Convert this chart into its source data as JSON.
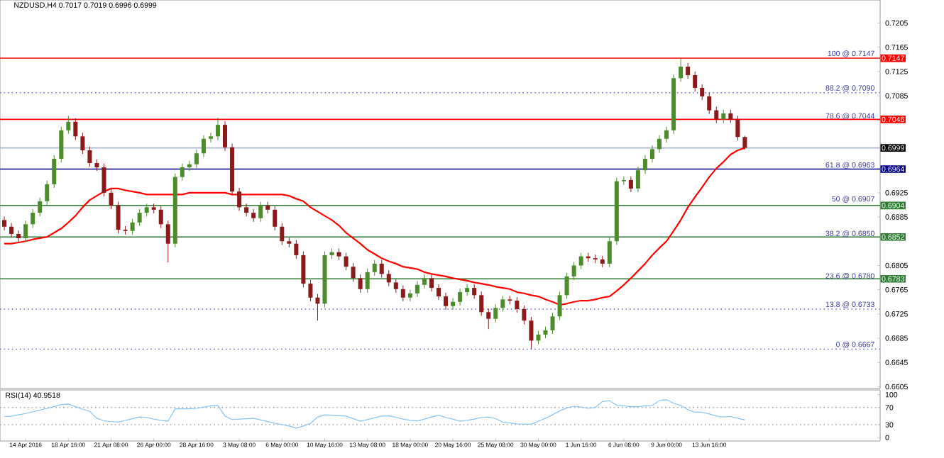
{
  "chart_data": [
    {
      "type": "candlestick",
      "title": "NZDUSD,H4  0.7017 0.7019 0.6996 0.6999",
      "tick_labels": "y",
      "categories": [
        null,
        null,
        null,
        null,
        null,
        null,
        null,
        null,
        null,
        null,
        null,
        null,
        null,
        null,
        null,
        null,
        null,
        null,
        null,
        null,
        null,
        null,
        null,
        null,
        null,
        null,
        null,
        null,
        null,
        null,
        null,
        null,
        null,
        null,
        null,
        null,
        null,
        null,
        null,
        null,
        null,
        null,
        null,
        null,
        null,
        null,
        null,
        null,
        null,
        null,
        null,
        null,
        null,
        null,
        null,
        null,
        null,
        null,
        null,
        null,
        null,
        null,
        null,
        null,
        null,
        null,
        null,
        null,
        null,
        null,
        null,
        null,
        null,
        null,
        null,
        null,
        null,
        null,
        null,
        null,
        null,
        null,
        null,
        null,
        null,
        null,
        null,
        null,
        null,
        null,
        null,
        null,
        null,
        null,
        null,
        null,
        null,
        null,
        null,
        null,
        null,
        null,
        null,
        null,
        null
      ],
      "ohlc": [
        [
          0.688,
          0.6886,
          0.6863,
          0.6869
        ],
        [
          0.6869,
          0.6875,
          0.6851,
          0.6857
        ],
        [
          0.6857,
          0.6863,
          0.6844,
          0.685
        ],
        [
          0.685,
          0.6879,
          0.6844,
          0.6873
        ],
        [
          0.6873,
          0.6898,
          0.6867,
          0.6892
        ],
        [
          0.6892,
          0.6917,
          0.6886,
          0.6911
        ],
        [
          0.6911,
          0.6945,
          0.6905,
          0.6939
        ],
        [
          0.6939,
          0.6987,
          0.6933,
          0.6981
        ],
        [
          0.6981,
          0.7034,
          0.6975,
          0.7028
        ],
        [
          0.7028,
          0.7052,
          0.7022,
          0.7042
        ],
        [
          0.7042,
          0.7048,
          0.7012,
          0.7018
        ],
        [
          0.7018,
          0.7024,
          0.6989,
          0.6995
        ],
        [
          0.6995,
          0.7001,
          0.6968,
          0.6974
        ],
        [
          0.6974,
          0.698,
          0.6961,
          0.6967
        ],
        [
          0.6967,
          0.6973,
          0.6919,
          0.6925
        ],
        [
          0.6925,
          0.6931,
          0.6898,
          0.6904
        ],
        [
          0.6904,
          0.691,
          0.6858,
          0.6864
        ],
        [
          0.6864,
          0.687,
          0.6856,
          0.6862
        ],
        [
          0.6862,
          0.6882,
          0.6856,
          0.6876
        ],
        [
          0.6876,
          0.6898,
          0.687,
          0.6892
        ],
        [
          0.6892,
          0.6907,
          0.6886,
          0.6901
        ],
        [
          0.6901,
          0.6907,
          0.6891,
          0.6897
        ],
        [
          0.6897,
          0.6903,
          0.6867,
          0.6873
        ],
        [
          0.6873,
          0.6879,
          0.681,
          0.6841
        ],
        [
          0.6841,
          0.6957,
          0.6835,
          0.6951
        ],
        [
          0.6951,
          0.6973,
          0.6945,
          0.6967
        ],
        [
          0.6967,
          0.6978,
          0.6961,
          0.6972
        ],
        [
          0.6972,
          0.6996,
          0.6966,
          0.699
        ],
        [
          0.699,
          0.702,
          0.6984,
          0.7014
        ],
        [
          0.7014,
          0.7024,
          0.7008,
          0.7018
        ],
        [
          0.7018,
          0.7049,
          0.7012,
          0.7037
        ],
        [
          0.7037,
          0.7043,
          0.6994,
          0.7
        ],
        [
          0.7,
          0.7006,
          0.6921,
          0.6927
        ],
        [
          0.6927,
          0.6933,
          0.6895,
          0.6901
        ],
        [
          0.6901,
          0.6907,
          0.6886,
          0.6892
        ],
        [
          0.6892,
          0.6898,
          0.6877,
          0.6883
        ],
        [
          0.6883,
          0.691,
          0.6877,
          0.6904
        ],
        [
          0.6904,
          0.691,
          0.6891,
          0.6897
        ],
        [
          0.6897,
          0.6903,
          0.6863,
          0.6869
        ],
        [
          0.6869,
          0.6875,
          0.6839,
          0.6845
        ],
        [
          0.6845,
          0.6851,
          0.6835,
          0.6841
        ],
        [
          0.6841,
          0.6847,
          0.6816,
          0.6822
        ],
        [
          0.6822,
          0.6828,
          0.6769,
          0.6775
        ],
        [
          0.6775,
          0.6781,
          0.6746,
          0.6752
        ],
        [
          0.6752,
          0.6758,
          0.6714,
          0.6742
        ],
        [
          0.6742,
          0.6828,
          0.6736,
          0.6822
        ],
        [
          0.6822,
          0.6833,
          0.6816,
          0.6827
        ],
        [
          0.6827,
          0.6833,
          0.6814,
          0.682
        ],
        [
          0.682,
          0.6826,
          0.6797,
          0.6803
        ],
        [
          0.6803,
          0.6809,
          0.6778,
          0.6784
        ],
        [
          0.6784,
          0.679,
          0.676,
          0.6766
        ],
        [
          0.6766,
          0.68,
          0.676,
          0.6794
        ],
        [
          0.6794,
          0.6814,
          0.6788,
          0.6808
        ],
        [
          0.6808,
          0.6814,
          0.6785,
          0.6791
        ],
        [
          0.6791,
          0.6797,
          0.6771,
          0.6777
        ],
        [
          0.6777,
          0.6783,
          0.676,
          0.6766
        ],
        [
          0.6766,
          0.6772,
          0.6746,
          0.6752
        ],
        [
          0.6752,
          0.6765,
          0.6746,
          0.6759
        ],
        [
          0.6759,
          0.6779,
          0.6753,
          0.6773
        ],
        [
          0.6773,
          0.679,
          0.6767,
          0.6784
        ],
        [
          0.6784,
          0.679,
          0.6762,
          0.6768
        ],
        [
          0.6768,
          0.6774,
          0.6748,
          0.6754
        ],
        [
          0.6754,
          0.676,
          0.6732,
          0.6738
        ],
        [
          0.6738,
          0.6751,
          0.6732,
          0.6745
        ],
        [
          0.6745,
          0.6767,
          0.6739,
          0.6761
        ],
        [
          0.6761,
          0.6774,
          0.6755,
          0.6768
        ],
        [
          0.6768,
          0.6774,
          0.675,
          0.6756
        ],
        [
          0.6756,
          0.6762,
          0.6722,
          0.6728
        ],
        [
          0.6728,
          0.6734,
          0.67,
          0.6717
        ],
        [
          0.6717,
          0.6741,
          0.6711,
          0.6735
        ],
        [
          0.6735,
          0.6755,
          0.6729,
          0.6749
        ],
        [
          0.6749,
          0.6755,
          0.6741,
          0.6747
        ],
        [
          0.6747,
          0.6753,
          0.6727,
          0.6733
        ],
        [
          0.6733,
          0.6739,
          0.6708,
          0.6714
        ],
        [
          0.6714,
          0.672,
          0.6667,
          0.6681
        ],
        [
          0.6681,
          0.6697,
          0.6675,
          0.6691
        ],
        [
          0.6691,
          0.6704,
          0.6685,
          0.6698
        ],
        [
          0.6698,
          0.6727,
          0.6692,
          0.6721
        ],
        [
          0.6721,
          0.6762,
          0.6715,
          0.6756
        ],
        [
          0.6756,
          0.6793,
          0.675,
          0.6787
        ],
        [
          0.6787,
          0.6811,
          0.6781,
          0.6805
        ],
        [
          0.6805,
          0.6826,
          0.6799,
          0.682
        ],
        [
          0.682,
          0.6826,
          0.6811,
          0.6817
        ],
        [
          0.6817,
          0.6823,
          0.6809,
          0.6815
        ],
        [
          0.6815,
          0.6821,
          0.6802,
          0.6808
        ],
        [
          0.6808,
          0.6851,
          0.6802,
          0.6845
        ],
        [
          0.6845,
          0.695,
          0.6839,
          0.6944
        ],
        [
          0.6944,
          0.6952,
          0.6938,
          0.6946
        ],
        [
          0.6946,
          0.6952,
          0.6926,
          0.6932
        ],
        [
          0.6932,
          0.6968,
          0.6926,
          0.6962
        ],
        [
          0.6962,
          0.6987,
          0.6956,
          0.6981
        ],
        [
          0.6981,
          0.7003,
          0.6975,
          0.6997
        ],
        [
          0.6997,
          0.702,
          0.6991,
          0.7014
        ],
        [
          0.7014,
          0.7034,
          0.7008,
          0.7028
        ],
        [
          0.7028,
          0.712,
          0.7022,
          0.7114
        ],
        [
          0.7114,
          0.7147,
          0.7108,
          0.7133
        ],
        [
          0.7133,
          0.7139,
          0.7113,
          0.7119
        ],
        [
          0.7119,
          0.7125,
          0.7092,
          0.7098
        ],
        [
          0.7098,
          0.7104,
          0.7078,
          0.7084
        ],
        [
          0.7084,
          0.709,
          0.7055,
          0.7061
        ],
        [
          0.7061,
          0.7067,
          0.704,
          0.7046
        ],
        [
          0.7046,
          0.7062,
          0.704,
          0.7056
        ],
        [
          0.7056,
          0.7062,
          0.704,
          0.7046
        ],
        [
          0.7046,
          0.7052,
          0.7011,
          0.7017
        ],
        [
          0.7017,
          0.7019,
          0.6996,
          0.6999
        ]
      ],
      "series": [
        {
          "type": "line",
          "color": "#ff0000",
          "values": [
            0.6841,
            0.6841,
            0.6843,
            0.6845,
            0.6848,
            0.685,
            0.6852,
            0.6859,
            0.6866,
            0.6876,
            0.6887,
            0.6901,
            0.6913,
            0.692,
            0.6927,
            0.6932,
            0.6932,
            0.6929,
            0.6927,
            0.6925,
            0.6922,
            0.6922,
            0.6922,
            0.6922,
            0.6922,
            0.6922,
            0.6925,
            0.6925,
            0.6925,
            0.6925,
            0.6925,
            0.6925,
            0.6922,
            0.6922,
            0.6922,
            0.6922,
            0.6922,
            0.6922,
            0.6922,
            0.6922,
            0.692,
            0.6915,
            0.6911,
            0.6901,
            0.6894,
            0.6887,
            0.688,
            0.6871,
            0.6859,
            0.685,
            0.6841,
            0.6831,
            0.6824,
            0.6817,
            0.6812,
            0.6808,
            0.6803,
            0.6801,
            0.6799,
            0.6794,
            0.6791,
            0.6789,
            0.6787,
            0.6784,
            0.6782,
            0.678,
            0.6777,
            0.6775,
            0.6773,
            0.677,
            0.6768,
            0.6766,
            0.6761,
            0.6759,
            0.6756,
            0.6754,
            0.6749,
            0.6745,
            0.674,
            0.6742,
            0.6745,
            0.6747,
            0.6747,
            0.6749,
            0.6752,
            0.6754,
            0.6763,
            0.6773,
            0.6784,
            0.6796,
            0.6808,
            0.6822,
            0.6834,
            0.6845,
            0.6862,
            0.688,
            0.6901,
            0.6918,
            0.6934,
            0.6951,
            0.6965,
            0.6976,
            0.6988,
            0.6995,
            0.6999
          ]
        }
      ],
      "ylim": [
        0.6602,
        0.7243
      ],
      "yticks": [
        0.7205,
        0.7165,
        0.7125,
        0.7085,
        {
          "value": 0.7045,
          "label": null
        },
        {
          "value": 0.6965,
          "label": null
        },
        0.6925,
        0.6885,
        0.6805,
        0.6765,
        0.6725,
        0.6685,
        0.6645,
        0.6605
      ],
      "ref_lines": [
        {
          "axis": "y",
          "value": 0.7147,
          "label": "0.7147",
          "color": "#ff0000",
          "line_style": "solid"
        },
        {
          "axis": "y",
          "value": 0.7046,
          "label": "0.7046",
          "color": "#ff0000",
          "line_style": "solid"
        },
        {
          "axis": "y",
          "value": 0.6999,
          "label": "0.6999",
          "color": "#a9b6cc",
          "line_style": "solid"
        },
        {
          "axis": "y",
          "value": 0.6964,
          "label": "0.6964",
          "color": "#000080",
          "line_style": "solid"
        },
        {
          "axis": "y",
          "value": 0.6904,
          "label": "0.6904",
          "color": "#2e7d32",
          "line_style": "solid"
        },
        {
          "axis": "y",
          "value": 0.6852,
          "label": "0.6852",
          "color": "#2e7d32",
          "line_style": "solid"
        },
        {
          "axis": "y",
          "value": 0.6783,
          "label": "0.6783",
          "color": "#2e7d32",
          "line_style": "solid"
        },
        {
          "axis": "y",
          "value": 0.709,
          "color": "#6a6acd",
          "line_style": "dotted"
        },
        {
          "axis": "y",
          "value": 0.6733,
          "color": "#6a6acd",
          "line_style": "dotted"
        },
        {
          "axis": "y",
          "value": 0.6667,
          "color": "#6a6acd",
          "line_style": "dotted"
        }
      ],
      "annotations": [
        {
          "text": "100 @ 0.7147",
          "y": 0.7147
        },
        {
          "text": "88.2 @ 0.7090",
          "y": 0.709
        },
        {
          "text": "78.6 @ 0.7044",
          "y": 0.7044
        },
        {
          "text": "61.8 @ 0.6963",
          "y": 0.6963
        },
        {
          "text": "50 @ 0.6907",
          "y": 0.6907
        },
        {
          "text": "38.2 @ 0.6850",
          "y": 0.685
        },
        {
          "text": "23.6 @ 0.6780",
          "y": 0.678
        },
        {
          "text": "13.8 @ 0.6733",
          "y": 0.6733
        },
        {
          "text": "0 @ 0.6667",
          "y": 0.6667
        }
      ]
    },
    {
      "type": "line",
      "title": "RSI(14) 40.9518",
      "categories": [
        null,
        null,
        null,
        "14 Apr 2016",
        null,
        null,
        null,
        null,
        null,
        "18 Apr 16:00",
        null,
        null,
        null,
        null,
        null,
        "21 Apr 08:00",
        null,
        null,
        null,
        null,
        null,
        "26 Apr 00:00",
        null,
        null,
        null,
        null,
        null,
        "28 Apr 16:00",
        null,
        null,
        null,
        null,
        null,
        "3 May 08:00",
        null,
        null,
        null,
        null,
        null,
        "6 May 00:00",
        null,
        null,
        null,
        null,
        null,
        "10 May 16:00",
        null,
        null,
        null,
        null,
        null,
        "13 May 08:00",
        null,
        null,
        null,
        null,
        null,
        "18 May 00:00",
        null,
        null,
        null,
        null,
        null,
        "20 May 16:00",
        null,
        null,
        null,
        null,
        null,
        "25 May 08:00",
        null,
        null,
        null,
        null,
        null,
        "30 May 00:00",
        null,
        null,
        null,
        null,
        null,
        "1 Jun 16:00",
        null,
        null,
        null,
        null,
        null,
        "6 Jun 08:00",
        null,
        null,
        null,
        null,
        null,
        "9 Jun 00:00",
        null,
        null,
        null,
        null,
        null,
        "13 Jun 16:00",
        null,
        null,
        null,
        null,
        null
      ],
      "series": [
        {
          "color": "#87c4f0",
          "values": [
            49,
            50,
            53,
            56,
            60,
            64,
            68,
            72,
            77,
            78,
            72,
            66,
            61,
            45,
            39,
            37,
            36,
            40,
            44,
            48,
            47,
            43,
            40,
            38,
            67,
            67,
            67,
            68,
            71,
            74,
            75,
            50,
            42,
            43,
            44,
            45,
            41,
            37,
            33,
            30,
            27,
            22,
            27,
            33,
            48,
            53,
            52,
            51,
            50,
            44,
            38,
            42,
            46,
            50,
            51,
            47,
            43,
            40,
            39,
            43,
            48,
            52,
            47,
            43,
            38,
            40,
            43,
            47,
            48,
            44,
            36,
            34,
            32,
            31,
            31,
            38,
            45,
            53,
            62,
            69,
            73,
            71,
            68,
            70,
            84,
            86,
            75,
            74,
            72,
            72,
            74,
            75,
            86,
            88,
            80,
            75,
            65,
            59,
            59,
            55,
            50,
            48,
            49,
            45,
            41
          ]
        }
      ],
      "ylim": [
        -8,
        111
      ],
      "yticks": [
        0,
        30,
        70,
        100
      ],
      "ref_lines": [
        {
          "axis": "y",
          "value": 30,
          "color": "#a0a0a0",
          "line_style": "dotted"
        },
        {
          "axis": "y",
          "value": 70,
          "color": "#a0a0a0",
          "line_style": "dotted"
        }
      ]
    }
  ]
}
